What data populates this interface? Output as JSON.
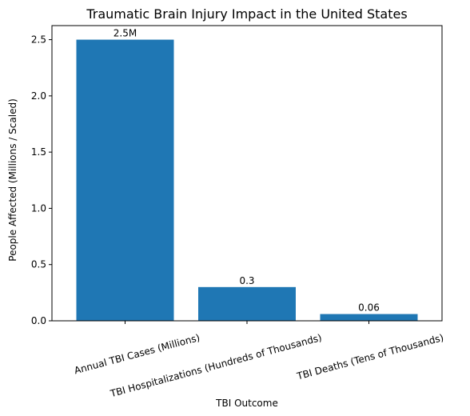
{
  "chart_data": {
    "type": "bar",
    "title": "Traumatic Brain Injury Impact in the United States",
    "xlabel": "TBI Outcome",
    "ylabel": "People Affected (Millions / Scaled)",
    "categories": [
      "Annual TBI Cases (Millions)",
      "TBI Hospitalizations (Hundreds of Thousands)",
      "TBI Deaths (Tens of Thousands)"
    ],
    "values": [
      2.5,
      0.3,
      0.06
    ],
    "data_labels": [
      "2.5M",
      "0.3",
      "0.06"
    ],
    "ylim": [
      0,
      2.625
    ],
    "yticks": [
      0.0,
      0.5,
      1.0,
      1.5,
      2.0,
      2.5
    ],
    "ytick_labels": [
      "0.0",
      "0.5",
      "1.0",
      "1.5",
      "2.0",
      "2.5"
    ],
    "bar_color": "#1f77b4",
    "grid": false,
    "legend": "none"
  }
}
